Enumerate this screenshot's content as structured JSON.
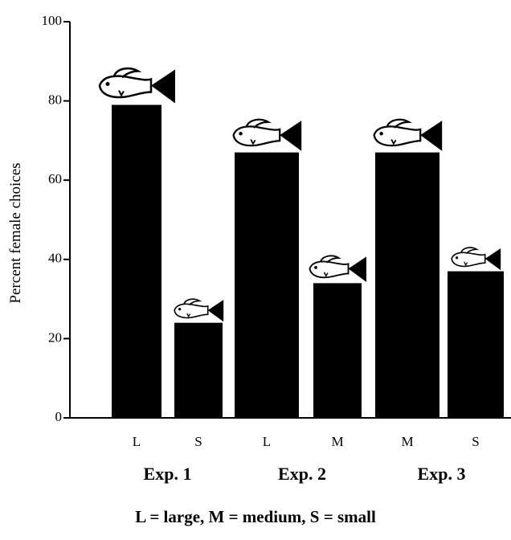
{
  "chart_data": {
    "type": "bar",
    "y_label": "Percent female choices",
    "categories": [
      "L",
      "S",
      "L",
      "M",
      "M",
      "S"
    ],
    "groups": [
      "Exp. 1",
      "Exp. 2",
      "Exp. 3"
    ],
    "values": [
      79,
      24,
      67,
      34,
      67,
      37
    ],
    "color": "#000000",
    "ylim": [
      0,
      100
    ],
    "yticks": [
      0,
      20,
      40,
      60,
      80,
      100
    ],
    "note": "L = large, M = medium, S = small"
  }
}
